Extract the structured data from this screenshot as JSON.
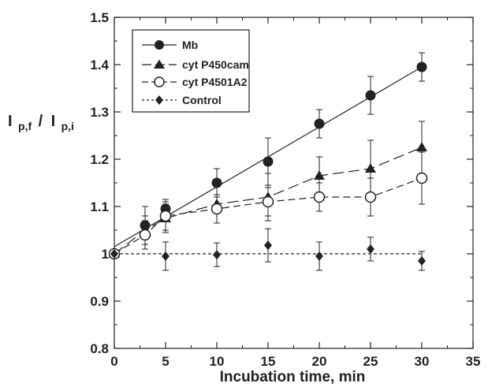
{
  "chart_data": {
    "type": "scatter",
    "xlabel": "Incubation time, min",
    "ylabel": {
      "part1": "I",
      "sub1": "p,f",
      "slash": "/",
      "part2": "I",
      "sub2": "p,i"
    },
    "xlim": [
      0,
      35
    ],
    "ylim": [
      0.8,
      1.5
    ],
    "xticks": [
      0,
      5,
      10,
      15,
      20,
      25,
      30,
      35
    ],
    "yticks": [
      0.8,
      0.9,
      1,
      1.1,
      1.2,
      1.3,
      1.4,
      1.5
    ],
    "ytick_labels": [
      "0.8",
      "0.9",
      "1",
      "1.1",
      "1.2",
      "1.3",
      "1.4",
      "1.5"
    ],
    "grid": false,
    "legend_position": "top-left",
    "series": [
      {
        "name": "Mb",
        "marker": "filled-circle",
        "line": "solid",
        "x": [
          0,
          3,
          5,
          10,
          15,
          20,
          25,
          30
        ],
        "y": [
          1.0,
          1.06,
          1.095,
          1.15,
          1.195,
          1.275,
          1.335,
          1.395
        ],
        "err": [
          0,
          0.04,
          0.02,
          0.03,
          0.05,
          0.03,
          0.04,
          0.03
        ],
        "fit": [
          1.015,
          1.395
        ]
      },
      {
        "name": "cyt P450cam",
        "marker": "filled-triangle",
        "line": "long-dash",
        "x": [
          0,
          3,
          5,
          10,
          15,
          20,
          25,
          30
        ],
        "y": [
          1.0,
          1.05,
          1.075,
          1.105,
          1.12,
          1.165,
          1.18,
          1.225
        ],
        "err": [
          0,
          0.03,
          0.03,
          0.04,
          0.05,
          0.04,
          0.06,
          0.055
        ]
      },
      {
        "name": "cyt P4501A2",
        "marker": "open-circle",
        "line": "short-dash",
        "x": [
          0,
          3,
          5,
          10,
          15,
          20,
          25,
          30
        ],
        "y": [
          1.0,
          1.04,
          1.08,
          1.095,
          1.11,
          1.12,
          1.12,
          1.16
        ],
        "err": [
          0,
          0.03,
          0.03,
          0.03,
          0.03,
          0.03,
          0.04,
          0.055
        ]
      },
      {
        "name": "Control",
        "marker": "filled-diamond",
        "line": "dotted",
        "x": [
          0,
          5,
          10,
          15,
          20,
          25,
          30
        ],
        "y": [
          1.0,
          0.995,
          0.998,
          1.018,
          0.995,
          1.01,
          0.985
        ],
        "err": [
          0,
          0.03,
          0.025,
          0.035,
          0.03,
          0.025,
          0.02
        ],
        "fit": [
          1.0,
          1.0
        ]
      }
    ]
  }
}
